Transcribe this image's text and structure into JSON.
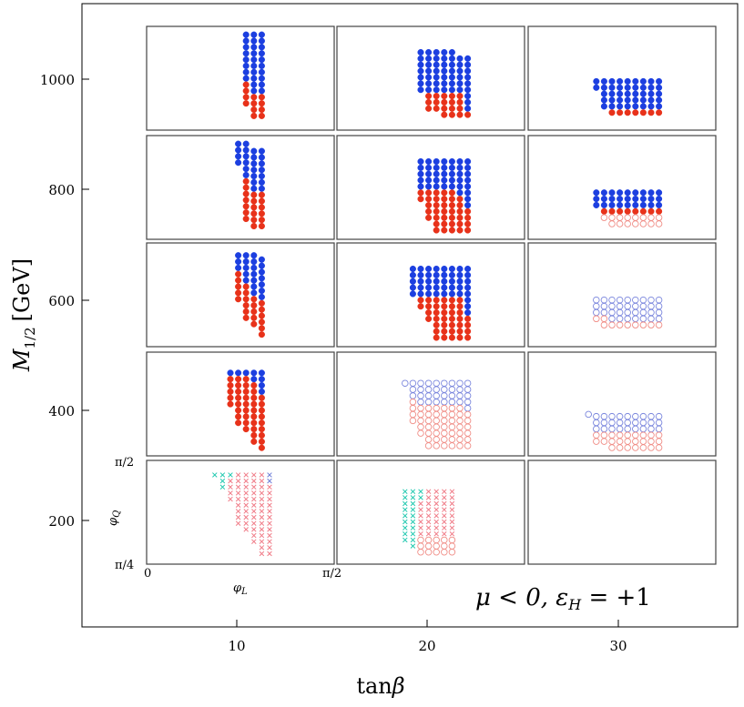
{
  "chart_data": {
    "type": "scatter",
    "title": "",
    "xlabel": "tanβ",
    "ylabel": "M_{1/2} [GeV]",
    "ylabel_main": "M",
    "ylabel_sub": "1/2",
    "ylabel_unit": "[GeV]",
    "xlabel_main": "tan",
    "xlabel_greek": "β",
    "x_ticks": [
      "10",
      "20",
      "30"
    ],
    "y_ticks": [
      "200",
      "400",
      "600",
      "800",
      "1000"
    ],
    "annotation": "μ < 0, εH = +1",
    "annotation_parts": {
      "mu": "μ < 0, ",
      "eps": "ε",
      "sub": "H",
      "rest": " = +1"
    },
    "panel_grid": {
      "columns_tanbeta": [
        10,
        20,
        30
      ],
      "rows_M12_GeV": [
        1000,
        800,
        600,
        400,
        200
      ]
    },
    "inset_axes": {
      "x_label": "φL",
      "x_label_main": "φ",
      "x_label_sub": "L",
      "x_min_label": "0",
      "x_max_label": "π/2",
      "y_label": "φQ",
      "y_label_main": "φ",
      "y_label_sub": "Q",
      "y_min_label": "π/4",
      "y_max_label": "π/2"
    },
    "legend_colors": {
      "blue": "#1c3fe0",
      "red": "#e8321a",
      "open_blue": "#7a86dd",
      "open_red": "#f08d86",
      "cross_cyan": "#22c9b0",
      "cross_pink": "#f07c88",
      "cross_blue": "#6f7fd8"
    },
    "panels": [
      {
        "name": "tb10-m1000",
        "col": 0,
        "row": 0,
        "cols": [
          {
            "i": 7,
            "top": 0.08,
            "spl": 0.55,
            "bot": 0.78
          },
          {
            "i": 8,
            "top": 0.08,
            "spl": 0.64,
            "bot": 0.9
          },
          {
            "i": 9,
            "top": 0.08,
            "spl": 0.64,
            "bot": 0.9
          }
        ],
        "fill": "filled"
      },
      {
        "name": "tb20-m1000",
        "col": 1,
        "row": 0,
        "cols": [
          {
            "i": 5,
            "top": 0.25,
            "spl": 0.64,
            "bot": 0.64
          },
          {
            "i": 6,
            "top": 0.25,
            "spl": 0.64,
            "bot": 0.8
          },
          {
            "i": 7,
            "top": 0.25,
            "spl": 0.64,
            "bot": 0.85
          },
          {
            "i": 8,
            "top": 0.25,
            "spl": 0.64,
            "bot": 0.9
          },
          {
            "i": 9,
            "top": 0.25,
            "spl": 0.64,
            "bot": 0.9
          },
          {
            "i": 10,
            "top": 0.31,
            "spl": 0.64,
            "bot": 0.9
          },
          {
            "i": 11,
            "top": 0.31,
            "spl": 0.8,
            "bot": 0.9
          }
        ],
        "fill": "filled"
      },
      {
        "name": "tb30-m1000",
        "col": 2,
        "row": 0,
        "cols": [
          {
            "i": 3,
            "top": 0.53,
            "spl": 0.64,
            "bot": 0.64
          },
          {
            "i": 4,
            "top": 0.53,
            "spl": 0.8,
            "bot": 0.8
          },
          {
            "i": 5,
            "top": 0.53,
            "spl": 0.8,
            "bot": 0.85
          },
          {
            "i": 6,
            "top": 0.53,
            "spl": 0.8,
            "bot": 0.85
          },
          {
            "i": 7,
            "top": 0.53,
            "spl": 0.8,
            "bot": 0.85
          },
          {
            "i": 8,
            "top": 0.53,
            "spl": 0.8,
            "bot": 0.85
          },
          {
            "i": 9,
            "top": 0.53,
            "spl": 0.8,
            "bot": 0.85
          },
          {
            "i": 10,
            "top": 0.53,
            "spl": 0.8,
            "bot": 0.85
          },
          {
            "i": 11,
            "top": 0.53,
            "spl": 0.8,
            "bot": 0.85
          }
        ],
        "fill": "filled_openred"
      },
      {
        "name": "tb10-m800",
        "col": 0,
        "row": 1,
        "cols": [
          {
            "i": 6,
            "top": 0.08,
            "spl": 0.3,
            "bot": 0.3
          },
          {
            "i": 7,
            "top": 0.08,
            "spl": 0.4,
            "bot": 0.84
          },
          {
            "i": 8,
            "top": 0.15,
            "spl": 0.55,
            "bot": 0.92
          },
          {
            "i": 9,
            "top": 0.15,
            "spl": 0.55,
            "bot": 0.92
          }
        ],
        "fill": "filled"
      },
      {
        "name": "tb20-m800",
        "col": 1,
        "row": 1,
        "cols": [
          {
            "i": 5,
            "top": 0.25,
            "spl": 0.5,
            "bot": 0.66
          },
          {
            "i": 6,
            "top": 0.25,
            "spl": 0.55,
            "bot": 0.84
          },
          {
            "i": 7,
            "top": 0.25,
            "spl": 0.55,
            "bot": 0.92
          },
          {
            "i": 8,
            "top": 0.25,
            "spl": 0.55,
            "bot": 0.92
          },
          {
            "i": 9,
            "top": 0.25,
            "spl": 0.55,
            "bot": 0.92
          },
          {
            "i": 10,
            "top": 0.25,
            "spl": 0.6,
            "bot": 0.92
          },
          {
            "i": 11,
            "top": 0.25,
            "spl": 0.7,
            "bot": 0.92
          }
        ],
        "fill": "filled"
      },
      {
        "name": "tb30-m800",
        "col": 2,
        "row": 1,
        "cols": [
          {
            "i": 3,
            "top": 0.55,
            "spl": 0.7,
            "bot": 0.7
          },
          {
            "i": 4,
            "top": 0.55,
            "spl": 0.7,
            "bot": 0.82
          },
          {
            "i": 5,
            "top": 0.55,
            "spl": 0.7,
            "bot": 0.9
          },
          {
            "i": 6,
            "top": 0.55,
            "spl": 0.7,
            "bot": 0.9
          },
          {
            "i": 7,
            "top": 0.55,
            "spl": 0.7,
            "bot": 0.9
          },
          {
            "i": 8,
            "top": 0.55,
            "spl": 0.7,
            "bot": 0.9
          },
          {
            "i": 9,
            "top": 0.55,
            "spl": 0.7,
            "bot": 0.9
          },
          {
            "i": 10,
            "top": 0.55,
            "spl": 0.7,
            "bot": 0.9
          },
          {
            "i": 11,
            "top": 0.55,
            "spl": 0.7,
            "bot": 0.9
          }
        ],
        "fill": "filled_openred"
      },
      {
        "name": "tb10-m600",
        "col": 0,
        "row": 2,
        "cols": [
          {
            "i": 6,
            "top": 0.12,
            "spl": 0.3,
            "bot": 0.6
          },
          {
            "i": 7,
            "top": 0.12,
            "spl": 0.4,
            "bot": 0.78
          },
          {
            "i": 8,
            "top": 0.12,
            "spl": 0.5,
            "bot": 0.84
          },
          {
            "i": 9,
            "top": 0.16,
            "spl": 0.55,
            "bot": 0.92
          }
        ],
        "fill": "filled"
      },
      {
        "name": "tb20-m600",
        "col": 1,
        "row": 2,
        "cols": [
          {
            "i": 4,
            "top": 0.25,
            "spl": 0.55,
            "bot": 0.55
          },
          {
            "i": 5,
            "top": 0.25,
            "spl": 0.55,
            "bot": 0.62
          },
          {
            "i": 6,
            "top": 0.25,
            "spl": 0.55,
            "bot": 0.78
          },
          {
            "i": 7,
            "top": 0.25,
            "spl": 0.55,
            "bot": 0.92
          },
          {
            "i": 8,
            "top": 0.25,
            "spl": 0.55,
            "bot": 0.92
          },
          {
            "i": 9,
            "top": 0.25,
            "spl": 0.55,
            "bot": 0.92
          },
          {
            "i": 10,
            "top": 0.25,
            "spl": 0.55,
            "bot": 0.92
          },
          {
            "i": 11,
            "top": 0.25,
            "spl": 0.7,
            "bot": 0.92
          }
        ],
        "fill": "filled"
      },
      {
        "name": "tb30-m600",
        "col": 2,
        "row": 2,
        "cols": [
          {
            "i": 3,
            "top": 0.55,
            "spl": 0.7,
            "bot": 0.78
          },
          {
            "i": 4,
            "top": 0.55,
            "spl": 0.7,
            "bot": 0.84
          },
          {
            "i": 5,
            "top": 0.55,
            "spl": 0.75,
            "bot": 0.84
          },
          {
            "i": 6,
            "top": 0.55,
            "spl": 0.75,
            "bot": 0.84
          },
          {
            "i": 7,
            "top": 0.55,
            "spl": 0.75,
            "bot": 0.84
          },
          {
            "i": 8,
            "top": 0.55,
            "spl": 0.75,
            "bot": 0.84
          },
          {
            "i": 9,
            "top": 0.55,
            "spl": 0.75,
            "bot": 0.84
          },
          {
            "i": 10,
            "top": 0.55,
            "spl": 0.75,
            "bot": 0.84
          },
          {
            "i": 11,
            "top": 0.55,
            "spl": 0.75,
            "bot": 0.84
          }
        ],
        "fill": "open"
      },
      {
        "name": "tb10-m400",
        "col": 0,
        "row": 3,
        "cols": [
          {
            "i": 5,
            "top": 0.2,
            "spl": 0.2,
            "bot": 0.52
          },
          {
            "i": 6,
            "top": 0.2,
            "spl": 0.2,
            "bot": 0.7
          },
          {
            "i": 7,
            "top": 0.2,
            "spl": 0.2,
            "bot": 0.8
          },
          {
            "i": 8,
            "top": 0.2,
            "spl": 0.3,
            "bot": 0.88
          },
          {
            "i": 9,
            "top": 0.2,
            "spl": 0.4,
            "bot": 0.96
          }
        ],
        "fill": "filled"
      },
      {
        "name": "tb20-m400",
        "col": 1,
        "row": 3,
        "cols": [
          {
            "i": 3,
            "top": 0.3,
            "spl": 0.3,
            "bot": 0.3
          },
          {
            "i": 4,
            "top": 0.3,
            "spl": 0.45,
            "bot": 0.7
          },
          {
            "i": 5,
            "top": 0.3,
            "spl": 0.5,
            "bot": 0.82
          },
          {
            "i": 6,
            "top": 0.3,
            "spl": 0.5,
            "bot": 0.92
          },
          {
            "i": 7,
            "top": 0.3,
            "spl": 0.5,
            "bot": 0.92
          },
          {
            "i": 8,
            "top": 0.3,
            "spl": 0.5,
            "bot": 0.92
          },
          {
            "i": 9,
            "top": 0.3,
            "spl": 0.5,
            "bot": 0.92
          },
          {
            "i": 10,
            "top": 0.3,
            "spl": 0.5,
            "bot": 0.92
          },
          {
            "i": 11,
            "top": 0.3,
            "spl": 0.55,
            "bot": 0.92
          }
        ],
        "fill": "open"
      },
      {
        "name": "tb30-m400",
        "col": 2,
        "row": 3,
        "cols": [
          {
            "i": 2,
            "top": 0.6,
            "spl": 0.6,
            "bot": 0.6
          },
          {
            "i": 3,
            "top": 0.62,
            "spl": 0.75,
            "bot": 0.9
          },
          {
            "i": 4,
            "top": 0.62,
            "spl": 0.78,
            "bot": 0.9
          },
          {
            "i": 5,
            "top": 0.62,
            "spl": 0.78,
            "bot": 0.98
          },
          {
            "i": 6,
            "top": 0.62,
            "spl": 0.78,
            "bot": 0.98
          },
          {
            "i": 7,
            "top": 0.62,
            "spl": 0.78,
            "bot": 0.98
          },
          {
            "i": 8,
            "top": 0.62,
            "spl": 0.78,
            "bot": 0.98
          },
          {
            "i": 9,
            "top": 0.62,
            "spl": 0.78,
            "bot": 0.98
          },
          {
            "i": 10,
            "top": 0.62,
            "spl": 0.78,
            "bot": 0.98
          },
          {
            "i": 11,
            "top": 0.62,
            "spl": 0.78,
            "bot": 0.98
          }
        ],
        "fill": "open"
      },
      {
        "name": "tb10-m200",
        "col": 0,
        "row": 4,
        "cols": [
          {
            "i": 3,
            "top": 0.14,
            "cyanEnd": 0.14,
            "bot": 0.14
          },
          {
            "i": 4,
            "top": 0.14,
            "cyanEnd": 0.3,
            "bot": 0.3
          },
          {
            "i": 5,
            "top": 0.14,
            "cyanEnd": 0.14,
            "bot": 0.4
          },
          {
            "i": 6,
            "top": 0.14,
            "cyanEnd": 0.0,
            "bot": 0.62
          },
          {
            "i": 7,
            "top": 0.14,
            "cyanEnd": 0.0,
            "bot": 0.72
          },
          {
            "i": 8,
            "top": 0.14,
            "cyanEnd": 0.0,
            "bot": 0.82
          },
          {
            "i": 9,
            "top": 0.14,
            "cyanEnd": 0.0,
            "bot": 0.92
          },
          {
            "i": 10,
            "top": 0.14,
            "cyanEnd": 0.0,
            "bot": 0.92
          }
        ],
        "fill": "cross"
      },
      {
        "name": "tb20-m200",
        "col": 1,
        "row": 4,
        "cols": [
          {
            "i": 3,
            "top": 0.3,
            "cyanEnd": 0.78,
            "bot": 0.78
          },
          {
            "i": 4,
            "top": 0.3,
            "cyanEnd": 0.88,
            "bot": 0.88
          },
          {
            "i": 5,
            "top": 0.3,
            "cyanEnd": 0.4,
            "bot": 0.92
          },
          {
            "i": 6,
            "top": 0.3,
            "cyanEnd": 0.0,
            "bot": 0.92
          },
          {
            "i": 7,
            "top": 0.3,
            "cyanEnd": 0.0,
            "bot": 0.92
          },
          {
            "i": 8,
            "top": 0.3,
            "cyanEnd": 0.0,
            "bot": 0.92
          },
          {
            "i": 9,
            "top": 0.3,
            "cyanEnd": 0.0,
            "bot": 0.92
          }
        ],
        "fill": "cross_open"
      },
      {
        "name": "tb30-m200",
        "col": 2,
        "row": 4,
        "cols": [],
        "fill": "none"
      }
    ]
  }
}
